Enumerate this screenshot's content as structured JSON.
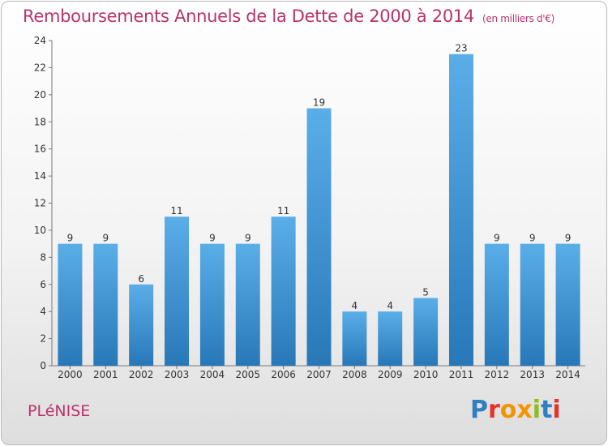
{
  "header": {
    "title": "Remboursements Annuels de la Dette de 2000 à 2014",
    "subtitle": "(en milliers d'€)"
  },
  "footer": {
    "commune": "PLéNISE",
    "logo": "Proxiti",
    "logo_colors": [
      "#2f7fc1",
      "#e5332a",
      "#f29400",
      "#f29400",
      "#8fbc1e",
      "#2f7fc1",
      "#e5332a"
    ]
  },
  "chart_data": {
    "type": "bar",
    "categories": [
      "2000",
      "2001",
      "2002",
      "2003",
      "2004",
      "2005",
      "2006",
      "2007",
      "2008",
      "2009",
      "2010",
      "2011",
      "2012",
      "2013",
      "2014"
    ],
    "values": [
      9,
      9,
      6,
      11,
      9,
      9,
      11,
      19,
      4,
      4,
      5,
      23,
      9,
      9,
      9
    ],
    "title": "Remboursements Annuels de la Dette de 2000 à 2014",
    "subtitle": "(en milliers d'€)",
    "xlabel": "",
    "ylabel": "",
    "ylim": [
      0,
      24
    ],
    "yticks": [
      0,
      2,
      4,
      6,
      8,
      10,
      12,
      14,
      16,
      18,
      20,
      22,
      24
    ],
    "grid": false,
    "legend": "none",
    "bar_color_light": "#5aaee8",
    "bar_color_dark": "#2878b8"
  }
}
